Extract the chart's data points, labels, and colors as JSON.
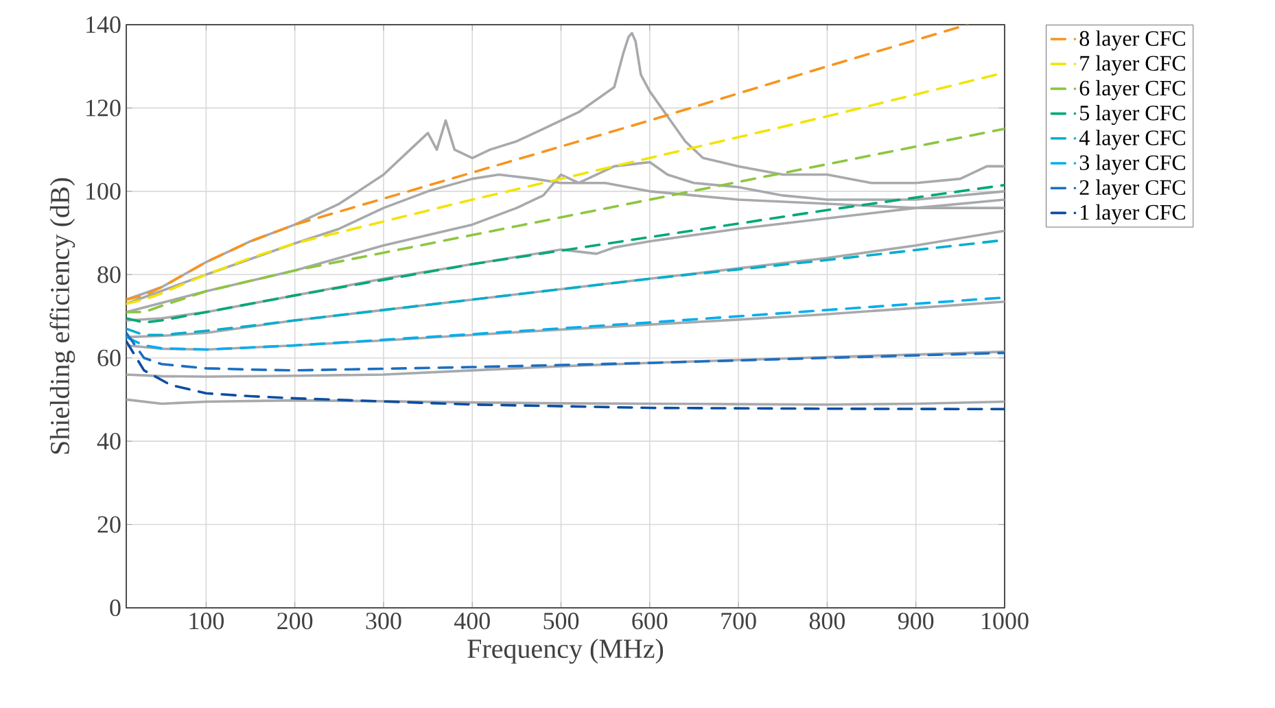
{
  "chart_data": {
    "type": "line",
    "xlabel": "Frequency (MHz)",
    "ylabel": "Shielding efficiency (dB)",
    "xlim": [
      10,
      1000
    ],
    "ylim": [
      0,
      140
    ],
    "xticks": [
      100,
      200,
      300,
      400,
      500,
      600,
      700,
      800,
      900,
      1000
    ],
    "yticks": [
      0,
      20,
      40,
      60,
      80,
      100,
      120,
      140
    ],
    "grid": true,
    "legend": "right",
    "marker": "none",
    "series": [
      {
        "color": "#a7a9ac",
        "line_style": "solid",
        "x": [
          10,
          50,
          100,
          200,
          300,
          400,
          500,
          600,
          700,
          800,
          900,
          1000
        ],
        "values": [
          50,
          49,
          49.5,
          49.8,
          49.6,
          49.3,
          49.1,
          49,
          48.9,
          48.8,
          49,
          49.5
        ]
      },
      {
        "color": "#a7a9ac",
        "line_style": "solid",
        "x": [
          10,
          50,
          100,
          200,
          300,
          400,
          500,
          600,
          700,
          800,
          900,
          1000
        ],
        "values": [
          56,
          55.6,
          55.5,
          55.7,
          56,
          57,
          58,
          58.8,
          59.5,
          60.2,
          60.8,
          61.5
        ]
      },
      {
        "color": "#a7a9ac",
        "line_style": "solid",
        "x": [
          10,
          50,
          100,
          200,
          300,
          400,
          500,
          600,
          700,
          800,
          900,
          1000
        ],
        "values": [
          63,
          62.2,
          62,
          63,
          64.2,
          65.5,
          66.8,
          68,
          69.2,
          70.5,
          72,
          73.5
        ]
      },
      {
        "color": "#a7a9ac",
        "line_style": "solid",
        "x": [
          10,
          50,
          100,
          200,
          300,
          400,
          500,
          600,
          700,
          800,
          900,
          1000
        ],
        "values": [
          65,
          65.3,
          66,
          69,
          71.5,
          74,
          76.5,
          79,
          81.5,
          84,
          87,
          90.5
        ]
      },
      {
        "color": "#a7a9ac",
        "line_style": "solid",
        "x": [
          10,
          50,
          100,
          200,
          300,
          400,
          500,
          520,
          540,
          560,
          600,
          700,
          800,
          900,
          1000
        ],
        "values": [
          69,
          69.5,
          71,
          75,
          79,
          82.5,
          86,
          85.5,
          85,
          86.5,
          88,
          91,
          93.5,
          96,
          98
        ]
      },
      {
        "color": "#a7a9ac",
        "line_style": "solid",
        "x": [
          10,
          100,
          200,
          300,
          400,
          450,
          480,
          500,
          520,
          560,
          600,
          620,
          650,
          700,
          750,
          800,
          900,
          1000
        ],
        "values": [
          71,
          76,
          81,
          87,
          92,
          96,
          99,
          104,
          102,
          106,
          107,
          104,
          102,
          101,
          99,
          98,
          98,
          100
        ]
      },
      {
        "color": "#a7a9ac",
        "line_style": "solid",
        "x": [
          10,
          100,
          200,
          250,
          300,
          350,
          400,
          430,
          470,
          500,
          550,
          600,
          650,
          700,
          800,
          900,
          1000
        ],
        "values": [
          73,
          80,
          87.5,
          91,
          96,
          100,
          103,
          104,
          103,
          102,
          102,
          100,
          99,
          98,
          97,
          96,
          96
        ]
      },
      {
        "color": "#a7a9ac",
        "line_style": "solid",
        "x": [
          10,
          50,
          100,
          150,
          200,
          250,
          300,
          330,
          350,
          360,
          370,
          380,
          400,
          420,
          450,
          480,
          500,
          520,
          540,
          560,
          570,
          576,
          580,
          584,
          590,
          600,
          620,
          640,
          660,
          680,
          700,
          750,
          800,
          850,
          900,
          950,
          980,
          1000
        ],
        "values": [
          74,
          77,
          83,
          88,
          92,
          97,
          104,
          110,
          114,
          110,
          117,
          110,
          108,
          110,
          112,
          115,
          117,
          119,
          122,
          125,
          133,
          137,
          138,
          136,
          128,
          124,
          118,
          112,
          108,
          107,
          106,
          104,
          104,
          102,
          102,
          103,
          106,
          106
        ]
      },
      {
        "name": "8 layer CFC",
        "color": "#f7941d",
        "line_style": "dashed",
        "x": [
          10,
          30,
          50,
          100,
          150,
          200,
          400,
          600,
          800,
          958
        ],
        "values": [
          74,
          75,
          77,
          83,
          88,
          92,
          104.5,
          117,
          130,
          140
        ]
      },
      {
        "name": "7 layer CFC",
        "color": "#f2e400",
        "line_style": "dashed",
        "x": [
          10,
          30,
          50,
          100,
          150,
          200,
          400,
          600,
          800,
          1000
        ],
        "values": [
          73,
          74,
          75.5,
          80,
          84,
          87.5,
          98,
          108,
          118,
          128.5
        ]
      },
      {
        "name": "6 layer CFC",
        "color": "#8dc63f",
        "line_style": "dashed",
        "x": [
          10,
          30,
          50,
          100,
          150,
          200,
          400,
          600,
          800,
          1000
        ],
        "values": [
          71,
          71,
          72.5,
          76,
          78.5,
          81,
          89.5,
          98,
          106.5,
          115
        ]
      },
      {
        "name": "5 layer CFC",
        "color": "#00a878",
        "line_style": "dashed",
        "x": [
          10,
          30,
          50,
          100,
          150,
          200,
          400,
          600,
          800,
          1000
        ],
        "values": [
          69.5,
          68.5,
          69,
          71,
          73,
          75,
          82.5,
          89,
          95.5,
          101.5
        ]
      },
      {
        "name": "4 layer CFC",
        "color": "#00aecd",
        "line_style": "dashed",
        "x": [
          10,
          30,
          50,
          100,
          150,
          200,
          400,
          600,
          800,
          1000
        ],
        "values": [
          67,
          65.5,
          65.5,
          66.5,
          67.7,
          69,
          74,
          79,
          83.5,
          88.3
        ]
      },
      {
        "name": "3 layer CFC",
        "color": "#00aeef",
        "line_style": "dashed",
        "x": [
          10,
          30,
          50,
          100,
          150,
          200,
          400,
          600,
          800,
          1000
        ],
        "values": [
          65,
          63,
          62.3,
          62,
          62.5,
          63,
          65.7,
          68.5,
          71.5,
          74.5
        ]
      },
      {
        "name": "2 layer CFC",
        "color": "#1b6ec2",
        "line_style": "dashed",
        "x": [
          10,
          30,
          50,
          100,
          150,
          200,
          400,
          600,
          800,
          1000
        ],
        "values": [
          66,
          60,
          58.5,
          57.5,
          57.2,
          57,
          57.8,
          58.8,
          60,
          61.2
        ]
      },
      {
        "name": "1 layer CFC",
        "color": "#0b4ea2",
        "line_style": "dashed",
        "x": [
          10,
          30,
          60,
          100,
          150,
          200,
          400,
          600,
          800,
          1000
        ],
        "values": [
          64,
          57,
          53.5,
          51.5,
          50.8,
          50.3,
          48.8,
          48,
          47.8,
          47.7
        ]
      }
    ]
  }
}
